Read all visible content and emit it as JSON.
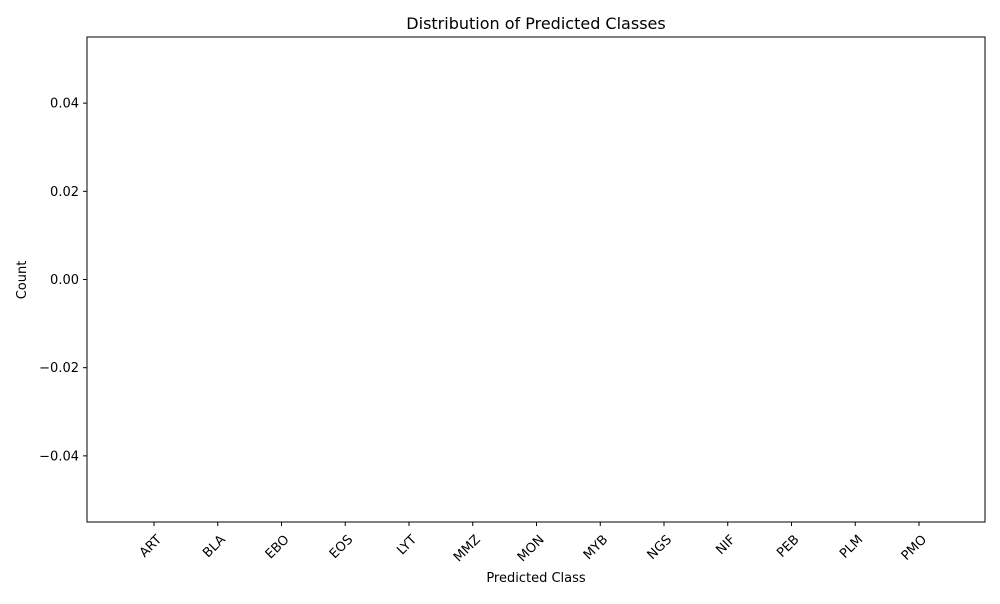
{
  "chart_data": {
    "type": "bar",
    "title": "Distribution of Predicted Classes",
    "xlabel": "Predicted Class",
    "ylabel": "Count",
    "categories": [
      "ART",
      "BLA",
      "EBO",
      "EOS",
      "LYT",
      "MMZ",
      "MON",
      "MYB",
      "NGS",
      "NIF",
      "PEB",
      "PLM",
      "PMO"
    ],
    "values": [
      0,
      0,
      0,
      0,
      0,
      0,
      0,
      0,
      0,
      0,
      0,
      0,
      0
    ],
    "ylim": [
      -0.055,
      0.055
    ],
    "yticks": [
      0.04,
      0.02,
      0.0,
      -0.02,
      -0.04
    ],
    "ytick_labels": [
      "0.04",
      "0.02",
      "0.00",
      "−0.02",
      "−0.04"
    ],
    "grid": false,
    "legend": "none"
  }
}
